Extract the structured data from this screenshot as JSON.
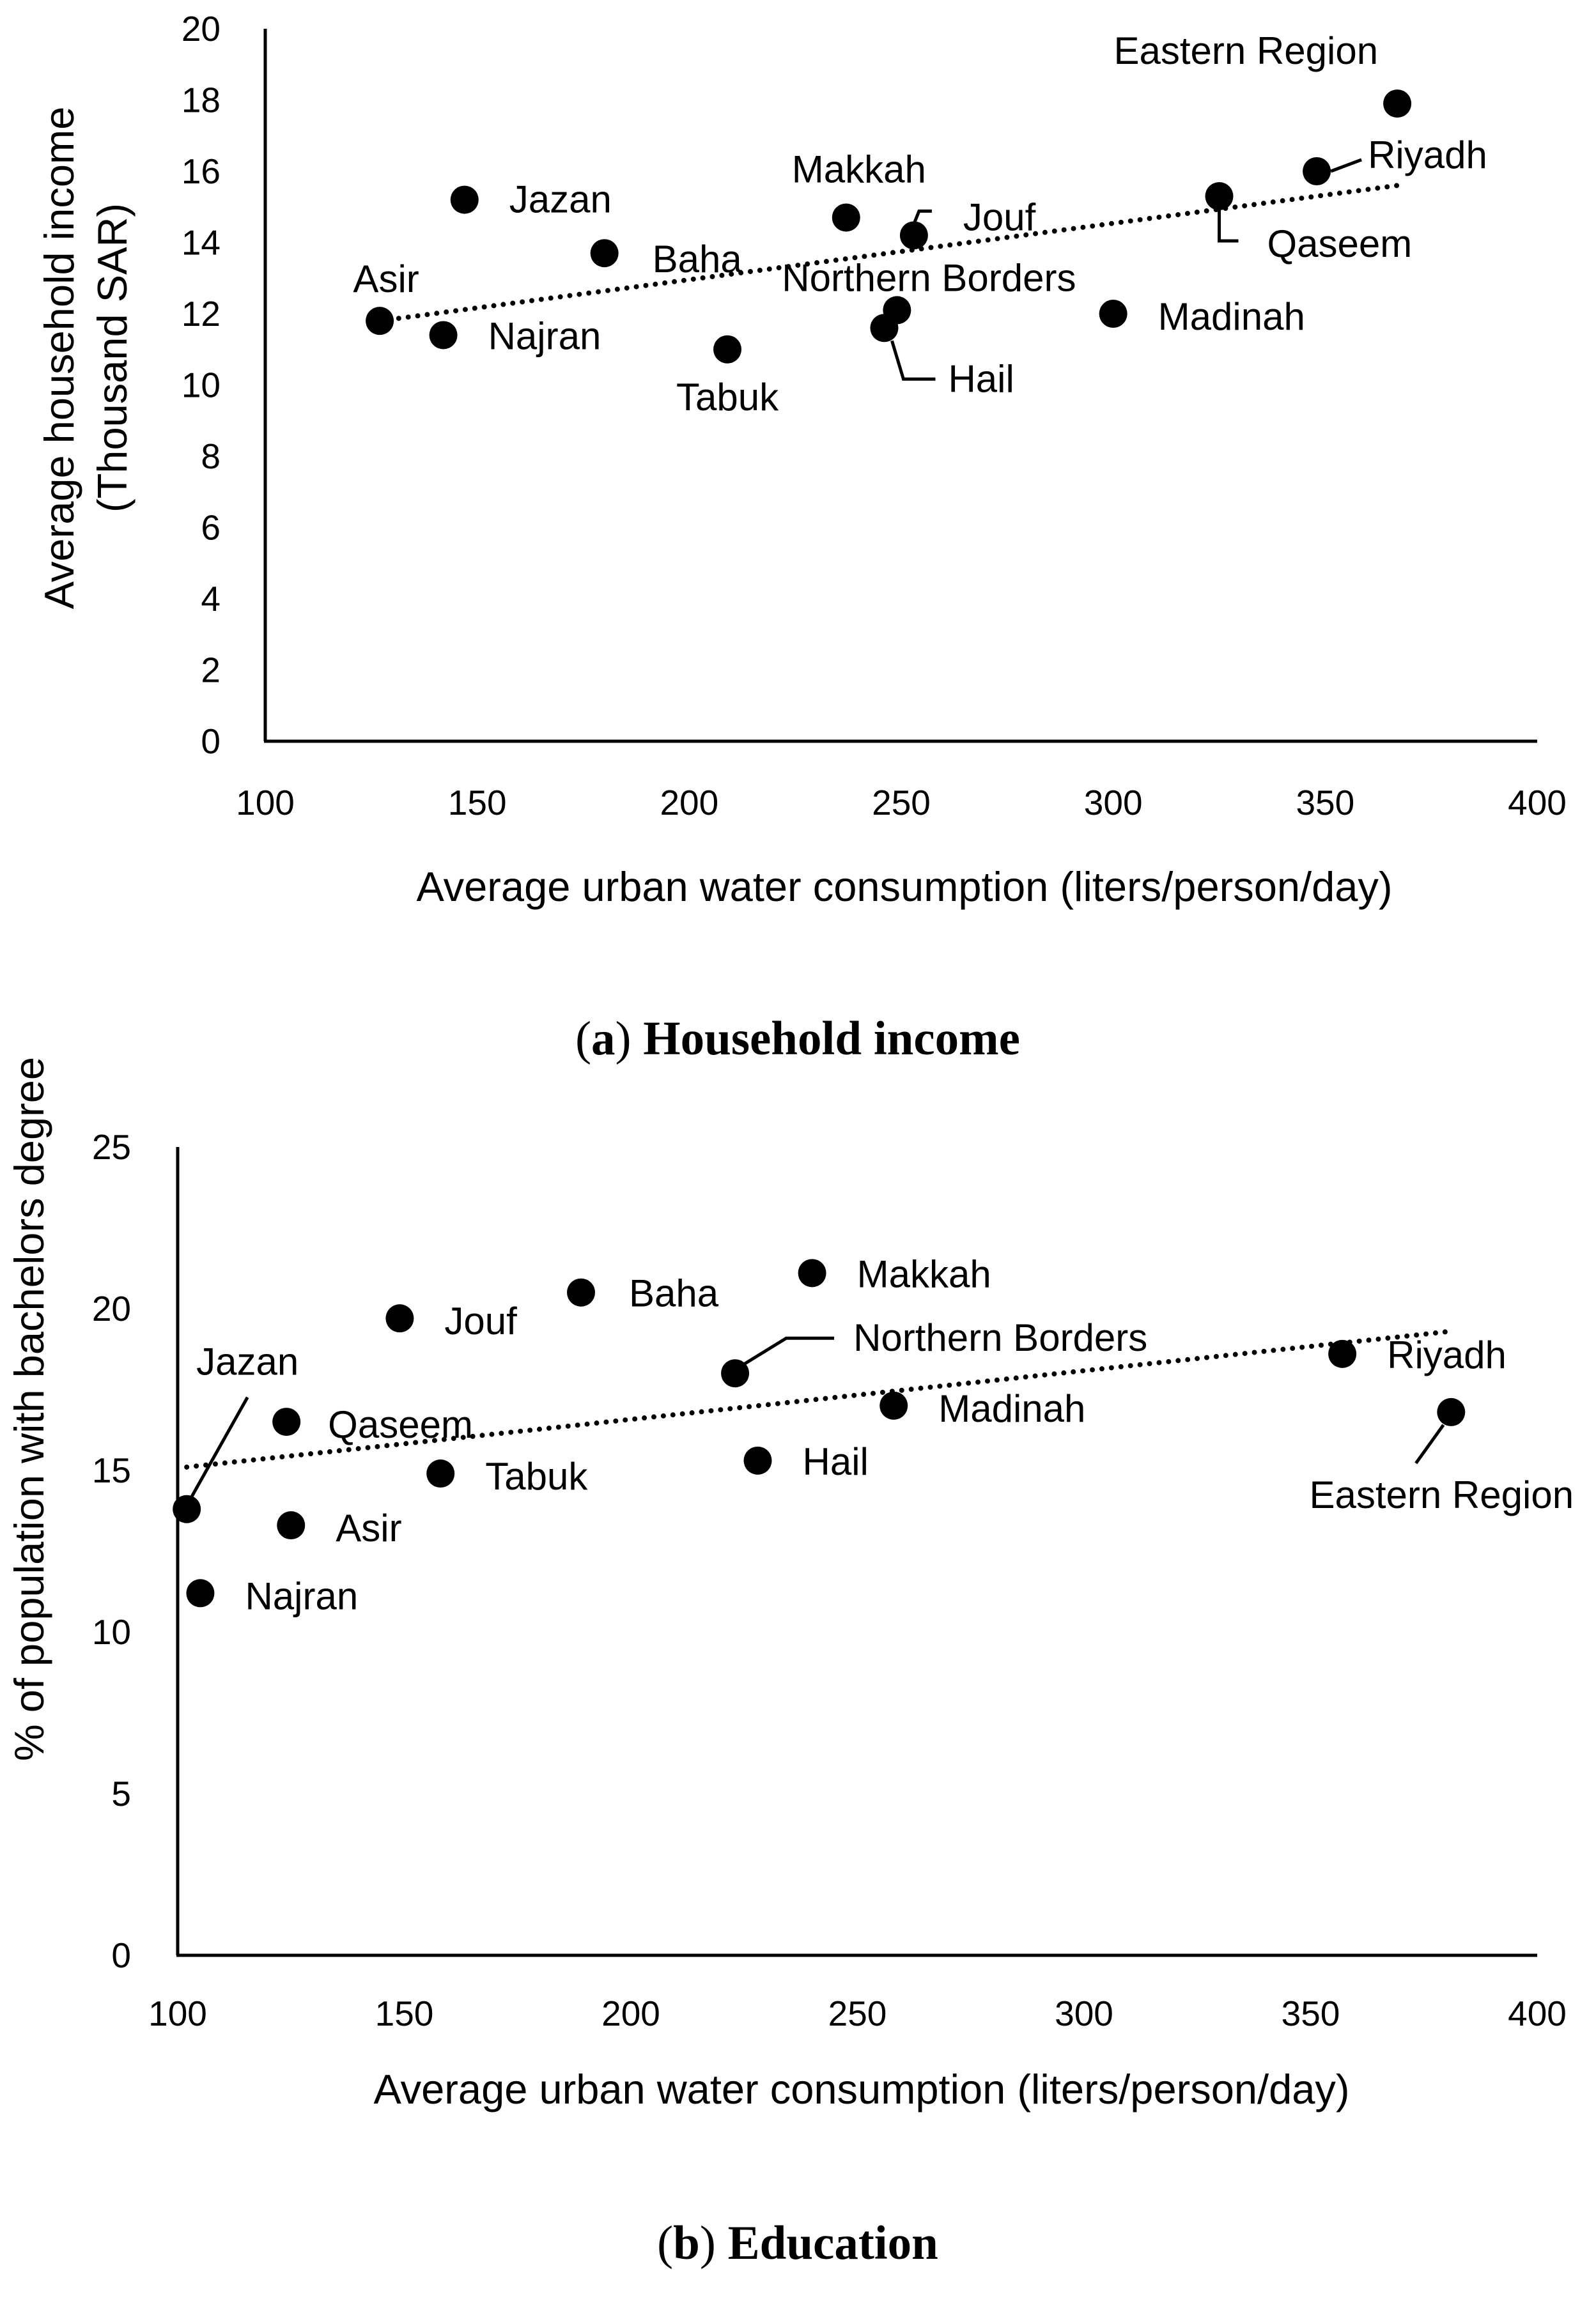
{
  "chart_data": [
    {
      "type": "scatter",
      "caption_letter": "a",
      "caption_text": "Household income",
      "xlabel": "Average urban water consumption (liters/person/day)",
      "ylabel_line1": "Average household income",
      "ylabel_line2": "(Thousand SAR)",
      "xlim": [
        100,
        400
      ],
      "ylim": [
        0,
        20
      ],
      "xticks": [
        100,
        150,
        200,
        250,
        300,
        350,
        400
      ],
      "yticks": [
        0,
        2,
        4,
        6,
        8,
        10,
        12,
        14,
        16,
        18,
        20
      ],
      "trendline": {
        "style": "dotted",
        "x": [
          127,
          367
        ],
        "y": [
          11.8,
          15.6
        ]
      },
      "points": [
        {
          "name": "Eastern Region",
          "x": 367,
          "y": 17.9
        },
        {
          "name": "Riyadh",
          "x": 348,
          "y": 16.0
        },
        {
          "name": "Qaseem",
          "x": 325,
          "y": 15.3
        },
        {
          "name": "Jazan",
          "x": 147,
          "y": 15.2
        },
        {
          "name": "Makkah",
          "x": 237,
          "y": 14.7
        },
        {
          "name": "Jouf",
          "x": 253,
          "y": 14.2
        },
        {
          "name": "Baha",
          "x": 180,
          "y": 13.7
        },
        {
          "name": "Northern Borders",
          "x": 249,
          "y": 12.1
        },
        {
          "name": "Madinah",
          "x": 300,
          "y": 12.0
        },
        {
          "name": "Asir",
          "x": 127,
          "y": 11.8
        },
        {
          "name": "Hail",
          "x": 246,
          "y": 11.6
        },
        {
          "name": "Najran",
          "x": 142,
          "y": 11.4
        },
        {
          "name": "Tabuk",
          "x": 209,
          "y": 11.0
        }
      ]
    },
    {
      "type": "scatter",
      "caption_letter": "b",
      "caption_text": "Education",
      "xlabel": "Average urban water consumption (liters/person/day)",
      "ylabel_line1": "% of population with bachelors degree",
      "ylabel_line2": "",
      "xlim": [
        100,
        400
      ],
      "ylim": [
        0,
        25
      ],
      "xticks": [
        100,
        150,
        200,
        250,
        300,
        350,
        400
      ],
      "yticks": [
        0,
        5,
        10,
        15,
        20,
        25
      ],
      "trendline": {
        "style": "dotted",
        "x": [
          102,
          381
        ],
        "y": [
          15.1,
          19.3
        ]
      },
      "points": [
        {
          "name": "Makkah",
          "x": 240,
          "y": 21.1
        },
        {
          "name": "Baha",
          "x": 189,
          "y": 20.5
        },
        {
          "name": "Jouf",
          "x": 149,
          "y": 19.7
        },
        {
          "name": "Riyadh",
          "x": 357,
          "y": 18.6
        },
        {
          "name": "Northern Borders",
          "x": 223,
          "y": 18.0
        },
        {
          "name": "Madinah",
          "x": 258,
          "y": 17.0
        },
        {
          "name": "Eastern Region",
          "x": 381,
          "y": 16.8
        },
        {
          "name": "Qaseem",
          "x": 124,
          "y": 16.5
        },
        {
          "name": "Hail",
          "x": 228,
          "y": 15.3
        },
        {
          "name": "Tabuk",
          "x": 158,
          "y": 14.9
        },
        {
          "name": "Jazan",
          "x": 102,
          "y": 13.8
        },
        {
          "name": "Asir",
          "x": 125,
          "y": 13.3
        },
        {
          "name": "Najran",
          "x": 105,
          "y": 11.2
        }
      ]
    }
  ]
}
